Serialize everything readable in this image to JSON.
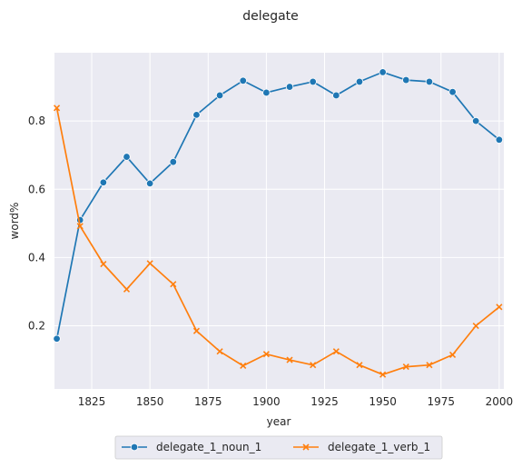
{
  "chart_data": {
    "type": "line",
    "title": "delegate",
    "xlabel": "year",
    "ylabel": "word%",
    "xlim": [
      1809,
      2002
    ],
    "ylim": [
      0.015,
      1.0
    ],
    "grid": true,
    "background": "#eaeaf2",
    "grid_color": "#ffffff",
    "legend_position": "bottom-center",
    "x_ticks": [
      1825,
      1850,
      1875,
      1900,
      1925,
      1950,
      1975,
      2000
    ],
    "y_ticks": [
      0.2,
      0.4,
      0.6,
      0.8
    ],
    "x_tick_labels": [
      "1825",
      "1850",
      "1875",
      "1900",
      "1925",
      "1950",
      "1975",
      "2000"
    ],
    "y_tick_labels": [
      "0.2",
      "0.4",
      "0.6",
      "0.8"
    ],
    "x": [
      1810,
      1820,
      1830,
      1840,
      1850,
      1860,
      1870,
      1880,
      1890,
      1900,
      1910,
      1920,
      1930,
      1940,
      1950,
      1960,
      1970,
      1980,
      1990,
      2000
    ],
    "series": [
      {
        "name": "delegate_1_noun_1",
        "color": "#1f77b4",
        "marker": "circle",
        "values": [
          0.162,
          0.51,
          0.62,
          0.695,
          0.617,
          0.68,
          0.818,
          0.875,
          0.918,
          0.883,
          0.9,
          0.915,
          0.875,
          0.915,
          0.943,
          0.92,
          0.915,
          0.885,
          0.8,
          0.745
        ]
      },
      {
        "name": "delegate_1_verb_1",
        "color": "#ff7f0e",
        "marker": "x",
        "values": [
          0.838,
          0.492,
          0.381,
          0.307,
          0.383,
          0.322,
          0.185,
          0.125,
          0.083,
          0.117,
          0.1,
          0.085,
          0.125,
          0.085,
          0.057,
          0.08,
          0.085,
          0.115,
          0.2,
          0.255
        ]
      }
    ]
  }
}
